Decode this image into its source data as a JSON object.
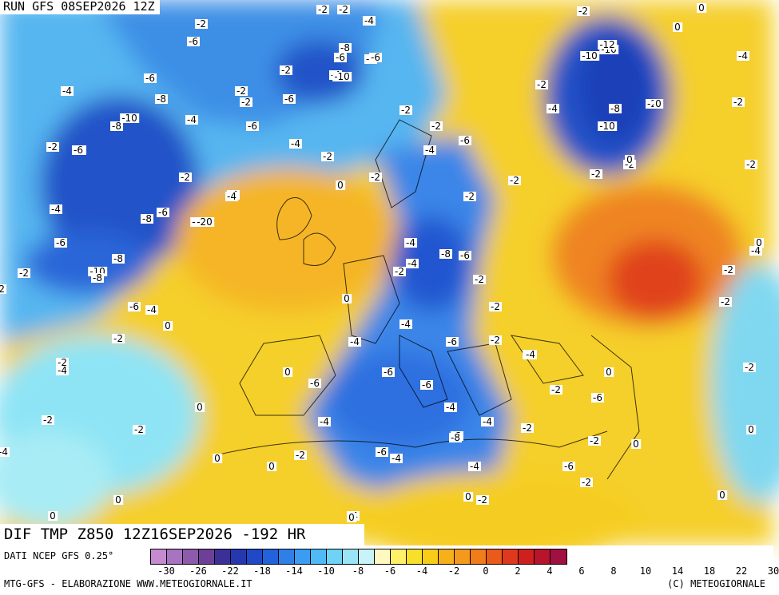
{
  "header": {
    "run_title": "RUN GFS 08SEP2026 12Z"
  },
  "map": {
    "title": "DIF TMP Z850 12Z16SEP2026 -192 HR",
    "colors": {
      "very_cold": "#1a3fb8",
      "cold": "#2a6be0",
      "cool": "#3aa0f0",
      "slightly_cool": "#80e0f5",
      "neutral": "#fff6a0",
      "mild": "#f8d80a",
      "warm": "#f5a820",
      "hot": "#e8561a",
      "very_hot": "#c81e28"
    },
    "value_labels": [
      "-2",
      "-2",
      "-2",
      "0",
      "-4",
      "-2",
      "-6",
      "-4",
      "-2",
      "-8",
      "-6",
      "-2",
      "-4",
      "-6",
      "-10",
      "-2",
      "-8",
      "-6",
      "-4",
      "-2",
      "-6",
      "-2",
      "-4",
      "-6",
      "-2",
      "-8",
      "-10",
      "-4",
      "-8",
      "-10",
      "-6",
      "-2",
      "-10",
      "-2",
      "-2",
      "-12",
      "-10",
      "-6",
      "-8",
      "-4",
      "-2",
      "-2",
      "-20",
      "-4",
      "-6",
      "-4",
      "-2",
      "-6",
      "-4",
      "0",
      "-2",
      "-4",
      "-20",
      "-2",
      "-6",
      "-6",
      "-8",
      "-4",
      "-10",
      "-8",
      "-2",
      "-6",
      "-8",
      "-4",
      "0",
      "-2",
      "-4",
      "-2",
      "-2",
      "-6",
      "-4",
      "0",
      "-6",
      "-4",
      "-6",
      "-2",
      "-6",
      "-4",
      "0",
      "-2",
      "-4",
      "0",
      "0",
      "-2",
      "-4",
      "-2",
      "-6",
      "-4",
      "-6",
      "-2",
      "0",
      "-2",
      "-2",
      "-8",
      "-4",
      "0",
      "0",
      "-2",
      "-4",
      "-6",
      "-2",
      "-2",
      "0",
      "0",
      "-2",
      "0",
      "0",
      "-2",
      "-4",
      "-2",
      "-2",
      "0",
      "0",
      "-2",
      "0",
      "-4",
      "-2",
      "0",
      "-4",
      "-2",
      "-4",
      "-2",
      "0",
      "0",
      "-4",
      "-2",
      "0"
    ]
  },
  "colorbar": {
    "tick_labels": [
      "-30",
      "-26",
      "-22",
      "-18",
      "-14",
      "-10",
      "-8",
      "-6",
      "-4",
      "-2",
      "0",
      "2",
      "4",
      "6",
      "8",
      "10",
      "14",
      "18",
      "22",
      "30"
    ],
    "colors": [
      "#c58ad0",
      "#a873c0",
      "#8e5aab",
      "#6e3f98",
      "#3b2f98",
      "#2538b0",
      "#1f49c8",
      "#2262dc",
      "#2e7fe8",
      "#3a9cf2",
      "#4fbaf5",
      "#6fd2f7",
      "#9ae6f8",
      "#c8f3f8",
      "#fff8c0",
      "#fff06a",
      "#f8e02a",
      "#f8cc18",
      "#f5b01a",
      "#f39a1c",
      "#f07c1a",
      "#ea5a1a",
      "#e0381c",
      "#d0201e",
      "#b8142c",
      "#a01040"
    ]
  },
  "footer": {
    "source": "DATI NCEP GFS 0.25°",
    "credit": "MTG-GFS - ELABORAZIONE WWW.METEOGIORNALE.IT",
    "copyright": "(C) METEOGIORNALE"
  }
}
